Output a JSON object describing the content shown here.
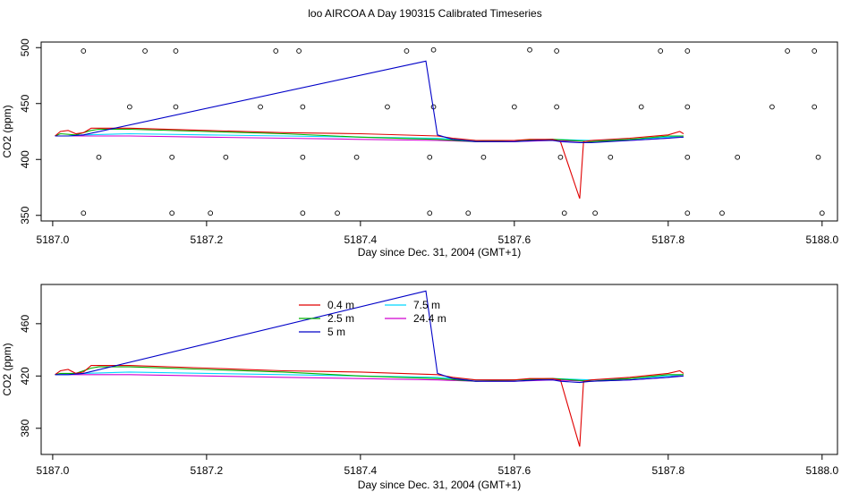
{
  "title": "loo AIRCOA A  Day 190315  Calibrated Timeseries",
  "colors": {
    "0.4 m": "#e00000",
    "2.5 m": "#00b000",
    "5 m": "#0000c8",
    "7.5 m": "#00d8ff",
    "24.4 m": "#d000d0"
  },
  "chart_data": [
    {
      "type": "line",
      "title": "",
      "xlabel": "Day since Dec. 31, 2004 (GMT+1)",
      "ylabel": "CO2 (ppm)",
      "xlim": [
        5186.985,
        5188.02
      ],
      "ylim": [
        345,
        505
      ],
      "xticks": [
        "5187.0",
        "5187.2",
        "5187.4",
        "5187.6",
        "5187.8",
        "5188.0"
      ],
      "xtick_values": [
        5187.0,
        5187.2,
        5187.4,
        5187.6,
        5187.8,
        5188.0
      ],
      "yticks": [
        "350",
        "400",
        "450",
        "500"
      ],
      "ytick_values": [
        350,
        400,
        450,
        500
      ],
      "legend": null,
      "series": [
        {
          "key": "0.4 m",
          "x": [
            5187.003,
            5187.01,
            5187.02,
            5187.03,
            5187.04,
            5187.05,
            5187.06,
            5187.1,
            5187.2,
            5187.3,
            5187.4,
            5187.5,
            5187.52,
            5187.55,
            5187.6,
            5187.62,
            5187.65,
            5187.66,
            5187.685,
            5187.69,
            5187.7,
            5187.75,
            5187.8,
            5187.815,
            5187.82
          ],
          "y": [
            421,
            425,
            426,
            423,
            424,
            428,
            428,
            428,
            426,
            424,
            423,
            421,
            419,
            417,
            417,
            418,
            418,
            416,
            365,
            416,
            417,
            419,
            422,
            425,
            423
          ]
        },
        {
          "key": "2.5 m",
          "x": [
            5187.003,
            5187.01,
            5187.03,
            5187.05,
            5187.06,
            5187.1,
            5187.2,
            5187.3,
            5187.4,
            5187.5,
            5187.55,
            5187.6,
            5187.65,
            5187.7,
            5187.75,
            5187.8,
            5187.82
          ],
          "y": [
            421,
            423,
            422,
            426,
            427,
            427,
            425,
            423,
            420,
            418,
            416,
            417,
            418,
            416,
            418,
            421,
            421
          ]
        },
        {
          "key": "5 m",
          "x": [
            5187.003,
            5187.02,
            5187.04,
            5187.485,
            5187.5,
            5187.52,
            5187.55,
            5187.6,
            5187.63,
            5187.65,
            5187.66,
            5187.685,
            5187.7,
            5187.75,
            5187.8,
            5187.82
          ],
          "y": [
            421,
            421,
            422,
            488,
            422,
            418,
            416,
            416,
            417,
            417,
            416,
            415,
            415,
            417,
            419,
            420
          ]
        },
        {
          "key": "7.5 m",
          "x": [
            5187.003,
            5187.02,
            5187.04,
            5187.1,
            5187.2,
            5187.3,
            5187.4,
            5187.5,
            5187.55,
            5187.6,
            5187.65,
            5187.7,
            5187.75,
            5187.8,
            5187.82
          ],
          "y": [
            421,
            421,
            422,
            423,
            422,
            421,
            420,
            419,
            417,
            417,
            418,
            417,
            418,
            420,
            421
          ]
        },
        {
          "key": "24.4 m",
          "x": [
            5187.003,
            5187.02,
            5187.04,
            5187.1,
            5187.2,
            5187.3,
            5187.4,
            5187.5,
            5187.55,
            5187.6,
            5187.65,
            5187.7,
            5187.75,
            5187.8,
            5187.82
          ],
          "y": [
            421,
            421,
            421,
            421,
            420,
            419,
            418,
            417,
            416,
            416,
            417,
            416,
            417,
            419,
            421
          ]
        }
      ],
      "circles": {
        "x": [
          5187.04,
          5187.12,
          5187.16,
          5187.29,
          5187.32,
          5187.46,
          5187.495,
          5187.62,
          5187.655,
          5187.79,
          5187.825,
          5187.955,
          5187.99,
          5187.1,
          5187.16,
          5187.27,
          5187.325,
          5187.435,
          5187.495,
          5187.6,
          5187.655,
          5187.765,
          5187.825,
          5187.935,
          5187.99,
          5187.06,
          5187.155,
          5187.225,
          5187.325,
          5187.395,
          5187.49,
          5187.56,
          5187.66,
          5187.725,
          5187.825,
          5187.89,
          5187.995,
          5187.04,
          5187.155,
          5187.205,
          5187.325,
          5187.37,
          5187.49,
          5187.54,
          5187.665,
          5187.705,
          5187.825,
          5187.87,
          5188.0
        ],
        "y": [
          497,
          497,
          497,
          497,
          497,
          497,
          498,
          498,
          497,
          497,
          497,
          497,
          497,
          447,
          447,
          447,
          447,
          447,
          447,
          447,
          447,
          447,
          447,
          447,
          447,
          402,
          402,
          402,
          402,
          402,
          402,
          402,
          402,
          402,
          402,
          402,
          402,
          352,
          352,
          352,
          352,
          352,
          352,
          352,
          352,
          352,
          352,
          352,
          352
        ]
      }
    },
    {
      "type": "line",
      "title": "",
      "xlabel": "Day since Dec. 31, 2004 (GMT+1)",
      "ylabel": "CO2 (ppm)",
      "xlim": [
        5186.985,
        5188.02
      ],
      "ylim": [
        360,
        490
      ],
      "xticks": [
        "5187.0",
        "5187.2",
        "5187.4",
        "5187.6",
        "5187.8",
        "5188.0"
      ],
      "xtick_values": [
        5187.0,
        5187.2,
        5187.4,
        5187.6,
        5187.8,
        5188.0
      ],
      "yticks": [
        "380",
        "420",
        "460"
      ],
      "ytick_values": [
        380,
        420,
        460
      ],
      "legend": "top-center",
      "legend_entries": [
        "0.4 m",
        "2.5 m",
        "5 m",
        "7.5 m",
        "24.4 m"
      ],
      "series": [
        {
          "key": "0.4 m",
          "x": [
            5187.003,
            5187.01,
            5187.02,
            5187.03,
            5187.04,
            5187.05,
            5187.06,
            5187.1,
            5187.2,
            5187.3,
            5187.4,
            5187.5,
            5187.52,
            5187.55,
            5187.6,
            5187.62,
            5187.65,
            5187.66,
            5187.685,
            5187.69,
            5187.7,
            5187.75,
            5187.8,
            5187.815,
            5187.82
          ],
          "y": [
            421,
            424,
            425,
            422,
            423,
            428,
            428,
            428,
            426,
            424,
            423,
            421,
            419,
            417,
            417,
            418,
            418,
            417,
            366,
            416,
            417,
            419,
            422,
            424,
            422
          ]
        },
        {
          "key": "2.5 m",
          "x": [
            5187.003,
            5187.01,
            5187.03,
            5187.05,
            5187.06,
            5187.1,
            5187.2,
            5187.3,
            5187.4,
            5187.5,
            5187.55,
            5187.6,
            5187.65,
            5187.7,
            5187.75,
            5187.8,
            5187.82
          ],
          "y": [
            421,
            422,
            422,
            426,
            427,
            427,
            425,
            423,
            420,
            418,
            416,
            417,
            418,
            416,
            418,
            421,
            421
          ]
        },
        {
          "key": "5 m",
          "x": [
            5187.003,
            5187.02,
            5187.04,
            5187.485,
            5187.5,
            5187.52,
            5187.55,
            5187.6,
            5187.63,
            5187.65,
            5187.66,
            5187.685,
            5187.7,
            5187.75,
            5187.8,
            5187.82
          ],
          "y": [
            421,
            421,
            422,
            485,
            422,
            418,
            416,
            416,
            417,
            417,
            416,
            415,
            416,
            417,
            419,
            420
          ]
        },
        {
          "key": "7.5 m",
          "x": [
            5187.003,
            5187.02,
            5187.04,
            5187.1,
            5187.2,
            5187.3,
            5187.4,
            5187.5,
            5187.55,
            5187.6,
            5187.65,
            5187.7,
            5187.75,
            5187.8,
            5187.82
          ],
          "y": [
            421,
            421,
            422,
            423,
            422,
            421,
            420,
            419,
            417,
            417,
            418,
            417,
            418,
            420,
            421
          ]
        },
        {
          "key": "24.4 m",
          "x": [
            5187.003,
            5187.02,
            5187.04,
            5187.1,
            5187.2,
            5187.3,
            5187.4,
            5187.5,
            5187.55,
            5187.6,
            5187.65,
            5187.7,
            5187.75,
            5187.8,
            5187.82
          ],
          "y": [
            421,
            421,
            421,
            421,
            420,
            419,
            418,
            417,
            416,
            416,
            417,
            416,
            417,
            419,
            421
          ]
        }
      ]
    }
  ]
}
